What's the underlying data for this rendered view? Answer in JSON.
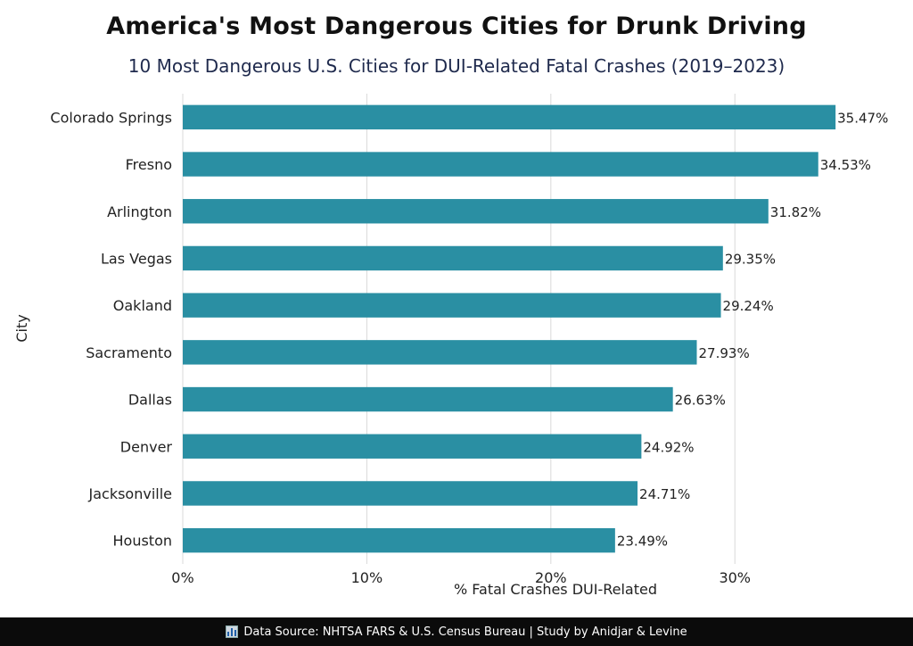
{
  "chart_data": {
    "type": "bar",
    "orientation": "horizontal",
    "title": "America's Most Dangerous Cities for Drunk Driving",
    "subtitle": "10 Most Dangerous U.S. Cities for DUI-Related Fatal Crashes (2019–2023)",
    "xlabel": "% Fatal Crashes DUI-Related",
    "ylabel": "City",
    "categories": [
      "Colorado Springs",
      "Fresno",
      "Arlington",
      "Las Vegas",
      "Oakland",
      "Sacramento",
      "Dallas",
      "Denver",
      "Jacksonville",
      "Houston"
    ],
    "values": [
      35.47,
      34.53,
      31.82,
      29.35,
      29.24,
      27.93,
      26.63,
      24.92,
      24.71,
      23.49
    ],
    "value_labels": [
      "35.47%",
      "34.53%",
      "31.82%",
      "29.35%",
      "29.24%",
      "27.93%",
      "26.63%",
      "24.92%",
      "24.71%",
      "23.49%"
    ],
    "xticks": [
      0,
      10,
      20,
      30
    ],
    "xtick_labels": [
      "0%",
      "10%",
      "20%",
      "30%"
    ],
    "xlim": [
      0,
      39
    ],
    "grid": "vertical",
    "legend": "none",
    "bar_color": "#2a8fa3"
  },
  "footer": {
    "icon": "bar-chart-icon",
    "text": "Data Source:  NHTSA FARS & U.S. Census Bureau | Study by Anidjar & Levine"
  }
}
